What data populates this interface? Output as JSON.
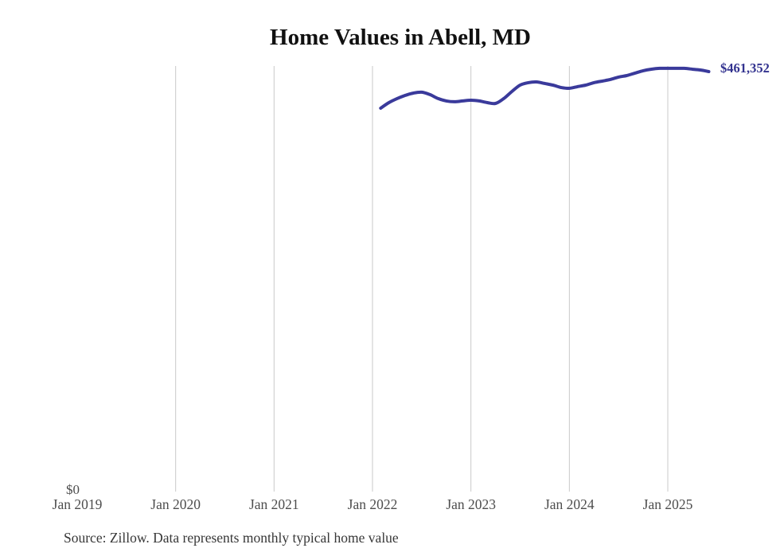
{
  "title": "Home Values in Abell, MD",
  "source_note": "Source: Zillow. Data represents monthly typical home value",
  "y_axis": {
    "zero_label": "$0"
  },
  "end_label": "$461,352",
  "colors": {
    "line": "#3a3a9b",
    "end_label": "#32328f",
    "gridline": "#c9c9c9",
    "axis_text": "#4d4d4d",
    "title_text": "#111111",
    "source_text": "#373737"
  },
  "chart_data": {
    "type": "line",
    "title": "Home Values in Abell, MD",
    "xlabel": "",
    "ylabel": "",
    "ylim": [
      0,
      500000
    ],
    "grid": "vertical-only",
    "legend_position": "none",
    "x_ticks": [
      {
        "label": "Jan 2019",
        "year": 2019,
        "gridline": false
      },
      {
        "label": "Jan 2020",
        "year": 2020,
        "gridline": true
      },
      {
        "label": "Jan 2021",
        "year": 2021,
        "gridline": true
      },
      {
        "label": "Jan 2022",
        "year": 2022,
        "gridline": true
      },
      {
        "label": "Jan 2023",
        "year": 2023,
        "gridline": true
      },
      {
        "label": "Jan 2024",
        "year": 2024,
        "gridline": true
      },
      {
        "label": "Jan 2025",
        "year": 2025,
        "gridline": true
      }
    ],
    "end_annotation": "$461,352",
    "series": [
      {
        "name": "Typical home value",
        "color": "#3a3a9b",
        "points": [
          {
            "date": "2022-02",
            "value": 421200
          },
          {
            "date": "2022-03",
            "value": 427300
          },
          {
            "date": "2022-04",
            "value": 431700
          },
          {
            "date": "2022-05",
            "value": 435200
          },
          {
            "date": "2022-06",
            "value": 437800
          },
          {
            "date": "2022-07",
            "value": 438700
          },
          {
            "date": "2022-08",
            "value": 436100
          },
          {
            "date": "2022-09",
            "value": 431700
          },
          {
            "date": "2022-10",
            "value": 429100
          },
          {
            "date": "2022-11",
            "value": 428200
          },
          {
            "date": "2022-12",
            "value": 429100
          },
          {
            "date": "2023-01",
            "value": 429900
          },
          {
            "date": "2023-02",
            "value": 429100
          },
          {
            "date": "2023-03",
            "value": 427300
          },
          {
            "date": "2023-04",
            "value": 426400
          },
          {
            "date": "2023-05",
            "value": 431700
          },
          {
            "date": "2023-06",
            "value": 439500
          },
          {
            "date": "2023-07",
            "value": 446500
          },
          {
            "date": "2023-08",
            "value": 449200
          },
          {
            "date": "2023-09",
            "value": 450000
          },
          {
            "date": "2023-10",
            "value": 448300
          },
          {
            "date": "2023-11",
            "value": 446500
          },
          {
            "date": "2023-12",
            "value": 443900
          },
          {
            "date": "2024-01",
            "value": 443000
          },
          {
            "date": "2024-02",
            "value": 444800
          },
          {
            "date": "2024-03",
            "value": 446500
          },
          {
            "date": "2024-04",
            "value": 449200
          },
          {
            "date": "2024-05",
            "value": 450900
          },
          {
            "date": "2024-06",
            "value": 452700
          },
          {
            "date": "2024-07",
            "value": 455300
          },
          {
            "date": "2024-08",
            "value": 457000
          },
          {
            "date": "2024-09",
            "value": 459700
          },
          {
            "date": "2024-10",
            "value": 462300
          },
          {
            "date": "2024-11",
            "value": 464000
          },
          {
            "date": "2024-12",
            "value": 464900
          },
          {
            "date": "2025-01",
            "value": 464900
          },
          {
            "date": "2025-02",
            "value": 464900
          },
          {
            "date": "2025-03",
            "value": 464900
          },
          {
            "date": "2025-04",
            "value": 464000
          },
          {
            "date": "2025-05",
            "value": 463100
          },
          {
            "date": "2025-06",
            "value": 461352
          }
        ]
      }
    ]
  }
}
